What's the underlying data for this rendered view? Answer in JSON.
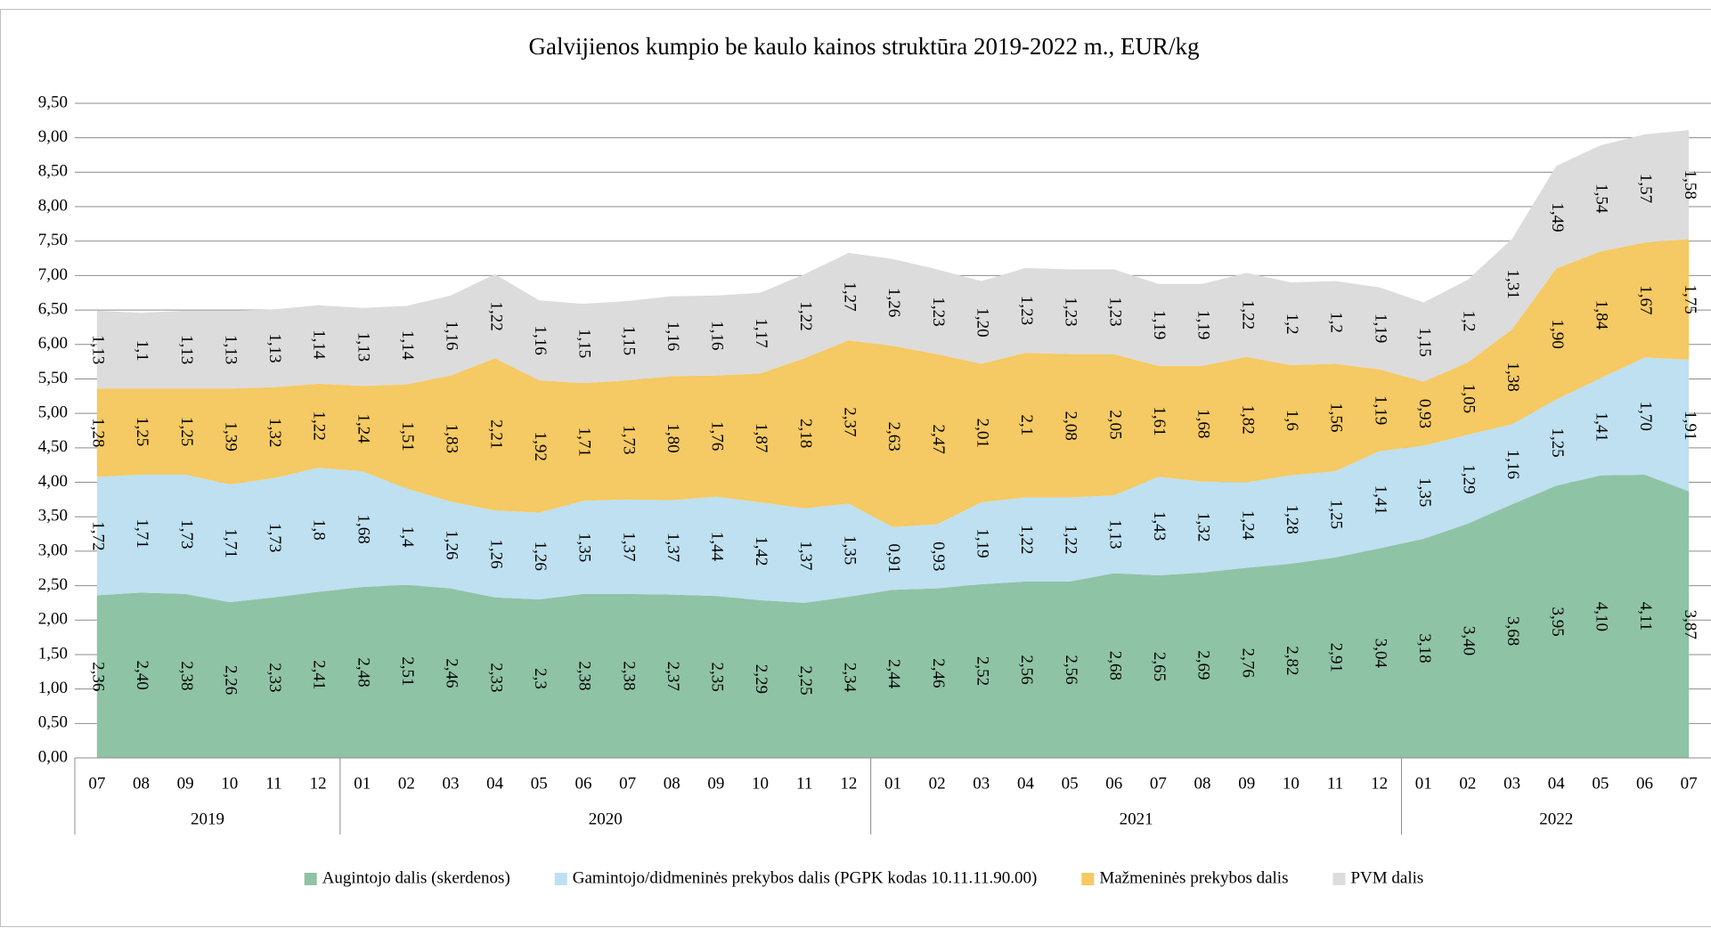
{
  "chart_data": {
    "type": "stacked_area",
    "title": "Galvijienos kumpio be kaulo kainos struktūra 2019-2022 m., EUR/kg",
    "groups": [
      {
        "label": "2019",
        "categories": [
          "07",
          "08",
          "09",
          "10",
          "11",
          "12"
        ]
      },
      {
        "label": "2020",
        "categories": [
          "01",
          "02",
          "03",
          "04",
          "05",
          "06",
          "07",
          "08",
          "09",
          "10",
          "11",
          "12"
        ]
      },
      {
        "label": "2021",
        "categories": [
          "01",
          "02",
          "03",
          "04",
          "05",
          "06",
          "07",
          "08",
          "09",
          "10",
          "11",
          "12"
        ]
      },
      {
        "label": "2022",
        "categories": [
          "01",
          "02",
          "03",
          "04",
          "05",
          "06",
          "07"
        ]
      }
    ],
    "ylim": [
      0,
      9.5
    ],
    "yticks": [
      {
        "value": 0,
        "label": "0,00"
      },
      {
        "value": 0.5,
        "label": "0,50"
      },
      {
        "value": 1,
        "label": "1,00"
      },
      {
        "value": 1.5,
        "label": "1,50"
      },
      {
        "value": 2,
        "label": "2,00"
      },
      {
        "value": 2.5,
        "label": "2,50"
      },
      {
        "value": 3,
        "label": "3,00"
      },
      {
        "value": 3.5,
        "label": "3,50"
      },
      {
        "value": 4,
        "label": "4,00"
      },
      {
        "value": 4.5,
        "label": "4,50"
      },
      {
        "value": 5,
        "label": "5,00"
      },
      {
        "value": 5.5,
        "label": "5,50"
      },
      {
        "value": 6,
        "label": "6,00"
      },
      {
        "value": 6.5,
        "label": "6,50"
      },
      {
        "value": 7,
        "label": "7,00"
      },
      {
        "value": 7.5,
        "label": "7,50"
      },
      {
        "value": 8,
        "label": "8,00"
      },
      {
        "value": 8.5,
        "label": "8,50"
      },
      {
        "value": 9,
        "label": "9,00"
      },
      {
        "value": 9.5,
        "label": "9,50"
      }
    ],
    "grid": true,
    "legend": "bottom",
    "series": [
      {
        "name": "Augintojo dalis (skerdenos)",
        "color": "#8fc3a5",
        "values": [
          2.36,
          2.4,
          2.38,
          2.26,
          2.33,
          2.41,
          2.48,
          2.51,
          2.46,
          2.33,
          2.3,
          2.38,
          2.38,
          2.37,
          2.35,
          2.29,
          2.25,
          2.34,
          2.44,
          2.46,
          2.52,
          2.56,
          2.56,
          2.68,
          2.65,
          2.69,
          2.76,
          2.82,
          2.91,
          3.04,
          3.18,
          3.4,
          3.68,
          3.95,
          4.1,
          4.11,
          3.87
        ],
        "value_labels": [
          "2,36",
          "2,40",
          "2,38",
          "2,26",
          "2,33",
          "2,41",
          "2,48",
          "2,51",
          "2,46",
          "2,33",
          "2,3",
          "2,38",
          "2,38",
          "2,37",
          "2,35",
          "2,29",
          "2,25",
          "2,34",
          "2,44",
          "2,46",
          "2,52",
          "2,56",
          "2,56",
          "2,68",
          "2,65",
          "2,69",
          "2,76",
          "2,82",
          "2,91",
          "3,04",
          "3,18",
          "3,40",
          "3,68",
          "3,95",
          "4,10",
          "4,11",
          "3,87"
        ]
      },
      {
        "name": "Gamintojo/didmeninės prekybos dalis (PGPK kodas 10.11.11.90.00)",
        "color": "#bee0f0",
        "values": [
          1.72,
          1.71,
          1.73,
          1.71,
          1.73,
          1.8,
          1.68,
          1.4,
          1.26,
          1.26,
          1.26,
          1.35,
          1.37,
          1.37,
          1.44,
          1.42,
          1.37,
          1.35,
          0.91,
          0.93,
          1.19,
          1.22,
          1.22,
          1.13,
          1.43,
          1.32,
          1.24,
          1.28,
          1.25,
          1.41,
          1.35,
          1.29,
          1.16,
          1.25,
          1.41,
          1.7,
          1.91
        ],
        "value_labels": [
          "1,72",
          "1,71",
          "1,73",
          "1,71",
          "1,73",
          "1,8",
          "1,68",
          "1,4",
          "1,26",
          "1,26",
          "1,26",
          "1,35",
          "1,37",
          "1,37",
          "1,44",
          "1,42",
          "1,37",
          "1,35",
          "0,91",
          "0,93",
          "1,19",
          "1,22",
          "1,22",
          "1,13",
          "1,43",
          "1,32",
          "1,24",
          "1,28",
          "1,25",
          "1,41",
          "1,35",
          "1,29",
          "1,16",
          "1,25",
          "1,41",
          "1,70",
          "1,91"
        ]
      },
      {
        "name": "Mažmeninės prekybos dalis",
        "color": "#f5c963",
        "values": [
          1.28,
          1.25,
          1.25,
          1.39,
          1.32,
          1.22,
          1.24,
          1.51,
          1.83,
          2.21,
          1.92,
          1.71,
          1.73,
          1.8,
          1.76,
          1.87,
          2.18,
          2.37,
          2.63,
          2.47,
          2.01,
          2.1,
          2.08,
          2.05,
          1.61,
          1.68,
          1.82,
          1.6,
          1.56,
          1.19,
          0.93,
          1.05,
          1.38,
          1.9,
          1.84,
          1.67,
          1.75
        ],
        "value_labels": [
          "1,28",
          "1,25",
          "1,25",
          "1,39",
          "1,32",
          "1,22",
          "1,24",
          "1,51",
          "1,83",
          "2,21",
          "1,92",
          "1,71",
          "1,73",
          "1,80",
          "1,76",
          "1,87",
          "2,18",
          "2,37",
          "2,63",
          "2,47",
          "2,01",
          "2,1",
          "2,08",
          "2,05",
          "1,61",
          "1,68",
          "1,82",
          "1,6",
          "1,56",
          "1,19",
          "0,93",
          "1,05",
          "1,38",
          "1,90",
          "1,84",
          "1,67",
          "1,75"
        ]
      },
      {
        "name": "PVM dalis",
        "color": "#dcdcdc",
        "values": [
          1.13,
          1.1,
          1.13,
          1.13,
          1.13,
          1.14,
          1.13,
          1.14,
          1.16,
          1.22,
          1.16,
          1.15,
          1.15,
          1.16,
          1.16,
          1.17,
          1.22,
          1.27,
          1.26,
          1.23,
          1.2,
          1.23,
          1.23,
          1.23,
          1.19,
          1.19,
          1.22,
          1.2,
          1.2,
          1.19,
          1.15,
          1.2,
          1.31,
          1.49,
          1.54,
          1.57,
          1.58
        ],
        "value_labels": [
          "1,13",
          "1,1",
          "1,13",
          "1,13",
          "1,13",
          "1,14",
          "1,13",
          "1,14",
          "1,16",
          "1,22",
          "1,16",
          "1,15",
          "1,15",
          "1,16",
          "1,16",
          "1,17",
          "1,22",
          "1,27",
          "1,26",
          "1,23",
          "1,20",
          "1,23",
          "1,23",
          "1,23",
          "1,19",
          "1,19",
          "1,22",
          "1,2",
          "1,2",
          "1,19",
          "1,15",
          "1,2",
          "1,31",
          "1,49",
          "1,54",
          "1,57",
          "1,58"
        ]
      }
    ]
  }
}
